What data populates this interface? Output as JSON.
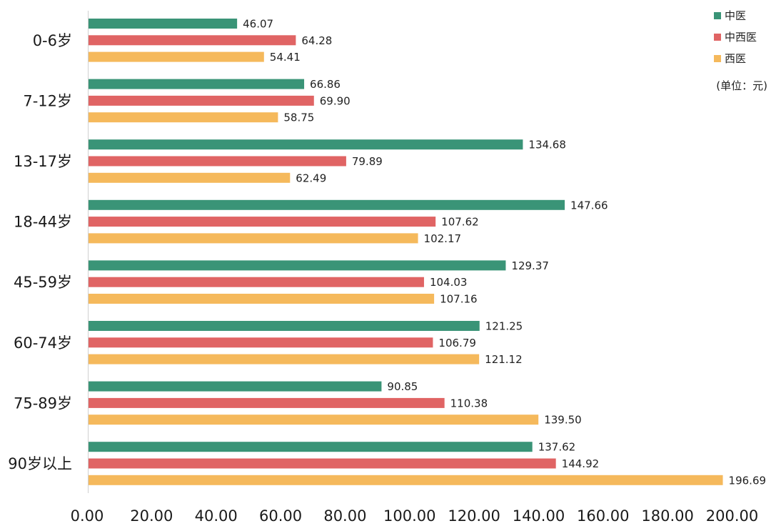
{
  "chart_data": {
    "type": "bar",
    "orientation": "horizontal",
    "title": "",
    "xlabel": "",
    "ylabel": "",
    "unit_note": "(单位：元)",
    "xlim": [
      0,
      200
    ],
    "x_ticks": [
      "0.00",
      "20.00",
      "40.00",
      "60.00",
      "80.00",
      "100.00",
      "120.00",
      "140.00",
      "160.00",
      "180.00",
      "200.00"
    ],
    "x_tick_values": [
      0,
      20,
      40,
      60,
      80,
      100,
      120,
      140,
      160,
      180,
      200
    ],
    "grid": false,
    "legend_position": "top-right",
    "categories": [
      "0-6岁",
      "7-12岁",
      "13-17岁",
      "18-44岁",
      "45-59岁",
      "60-74岁",
      "75-89岁",
      "90岁以上"
    ],
    "series": [
      {
        "name": "中医",
        "color": "#3a9477",
        "values": [
          46.07,
          66.86,
          134.68,
          147.66,
          129.37,
          121.25,
          90.85,
          137.62
        ],
        "labels": [
          "46.07",
          "66.86",
          "134.68",
          "147.66",
          "129.37",
          "121.25",
          "90.85",
          "137.62"
        ]
      },
      {
        "name": "中西医",
        "color": "#e06464",
        "values": [
          64.28,
          69.9,
          79.89,
          107.62,
          104.03,
          106.79,
          110.38,
          144.92
        ],
        "labels": [
          "64.28",
          "69.90",
          "79.89",
          "107.62",
          "104.03",
          "106.79",
          "110.38",
          "144.92"
        ]
      },
      {
        "name": "西医",
        "color": "#f5b95c",
        "values": [
          54.41,
          58.75,
          62.49,
          102.17,
          107.16,
          121.12,
          139.5,
          196.69
        ],
        "labels": [
          "54.41",
          "58.75",
          "62.49",
          "102.17",
          "107.16",
          "121.12",
          "139.50",
          "196.69"
        ]
      }
    ]
  }
}
